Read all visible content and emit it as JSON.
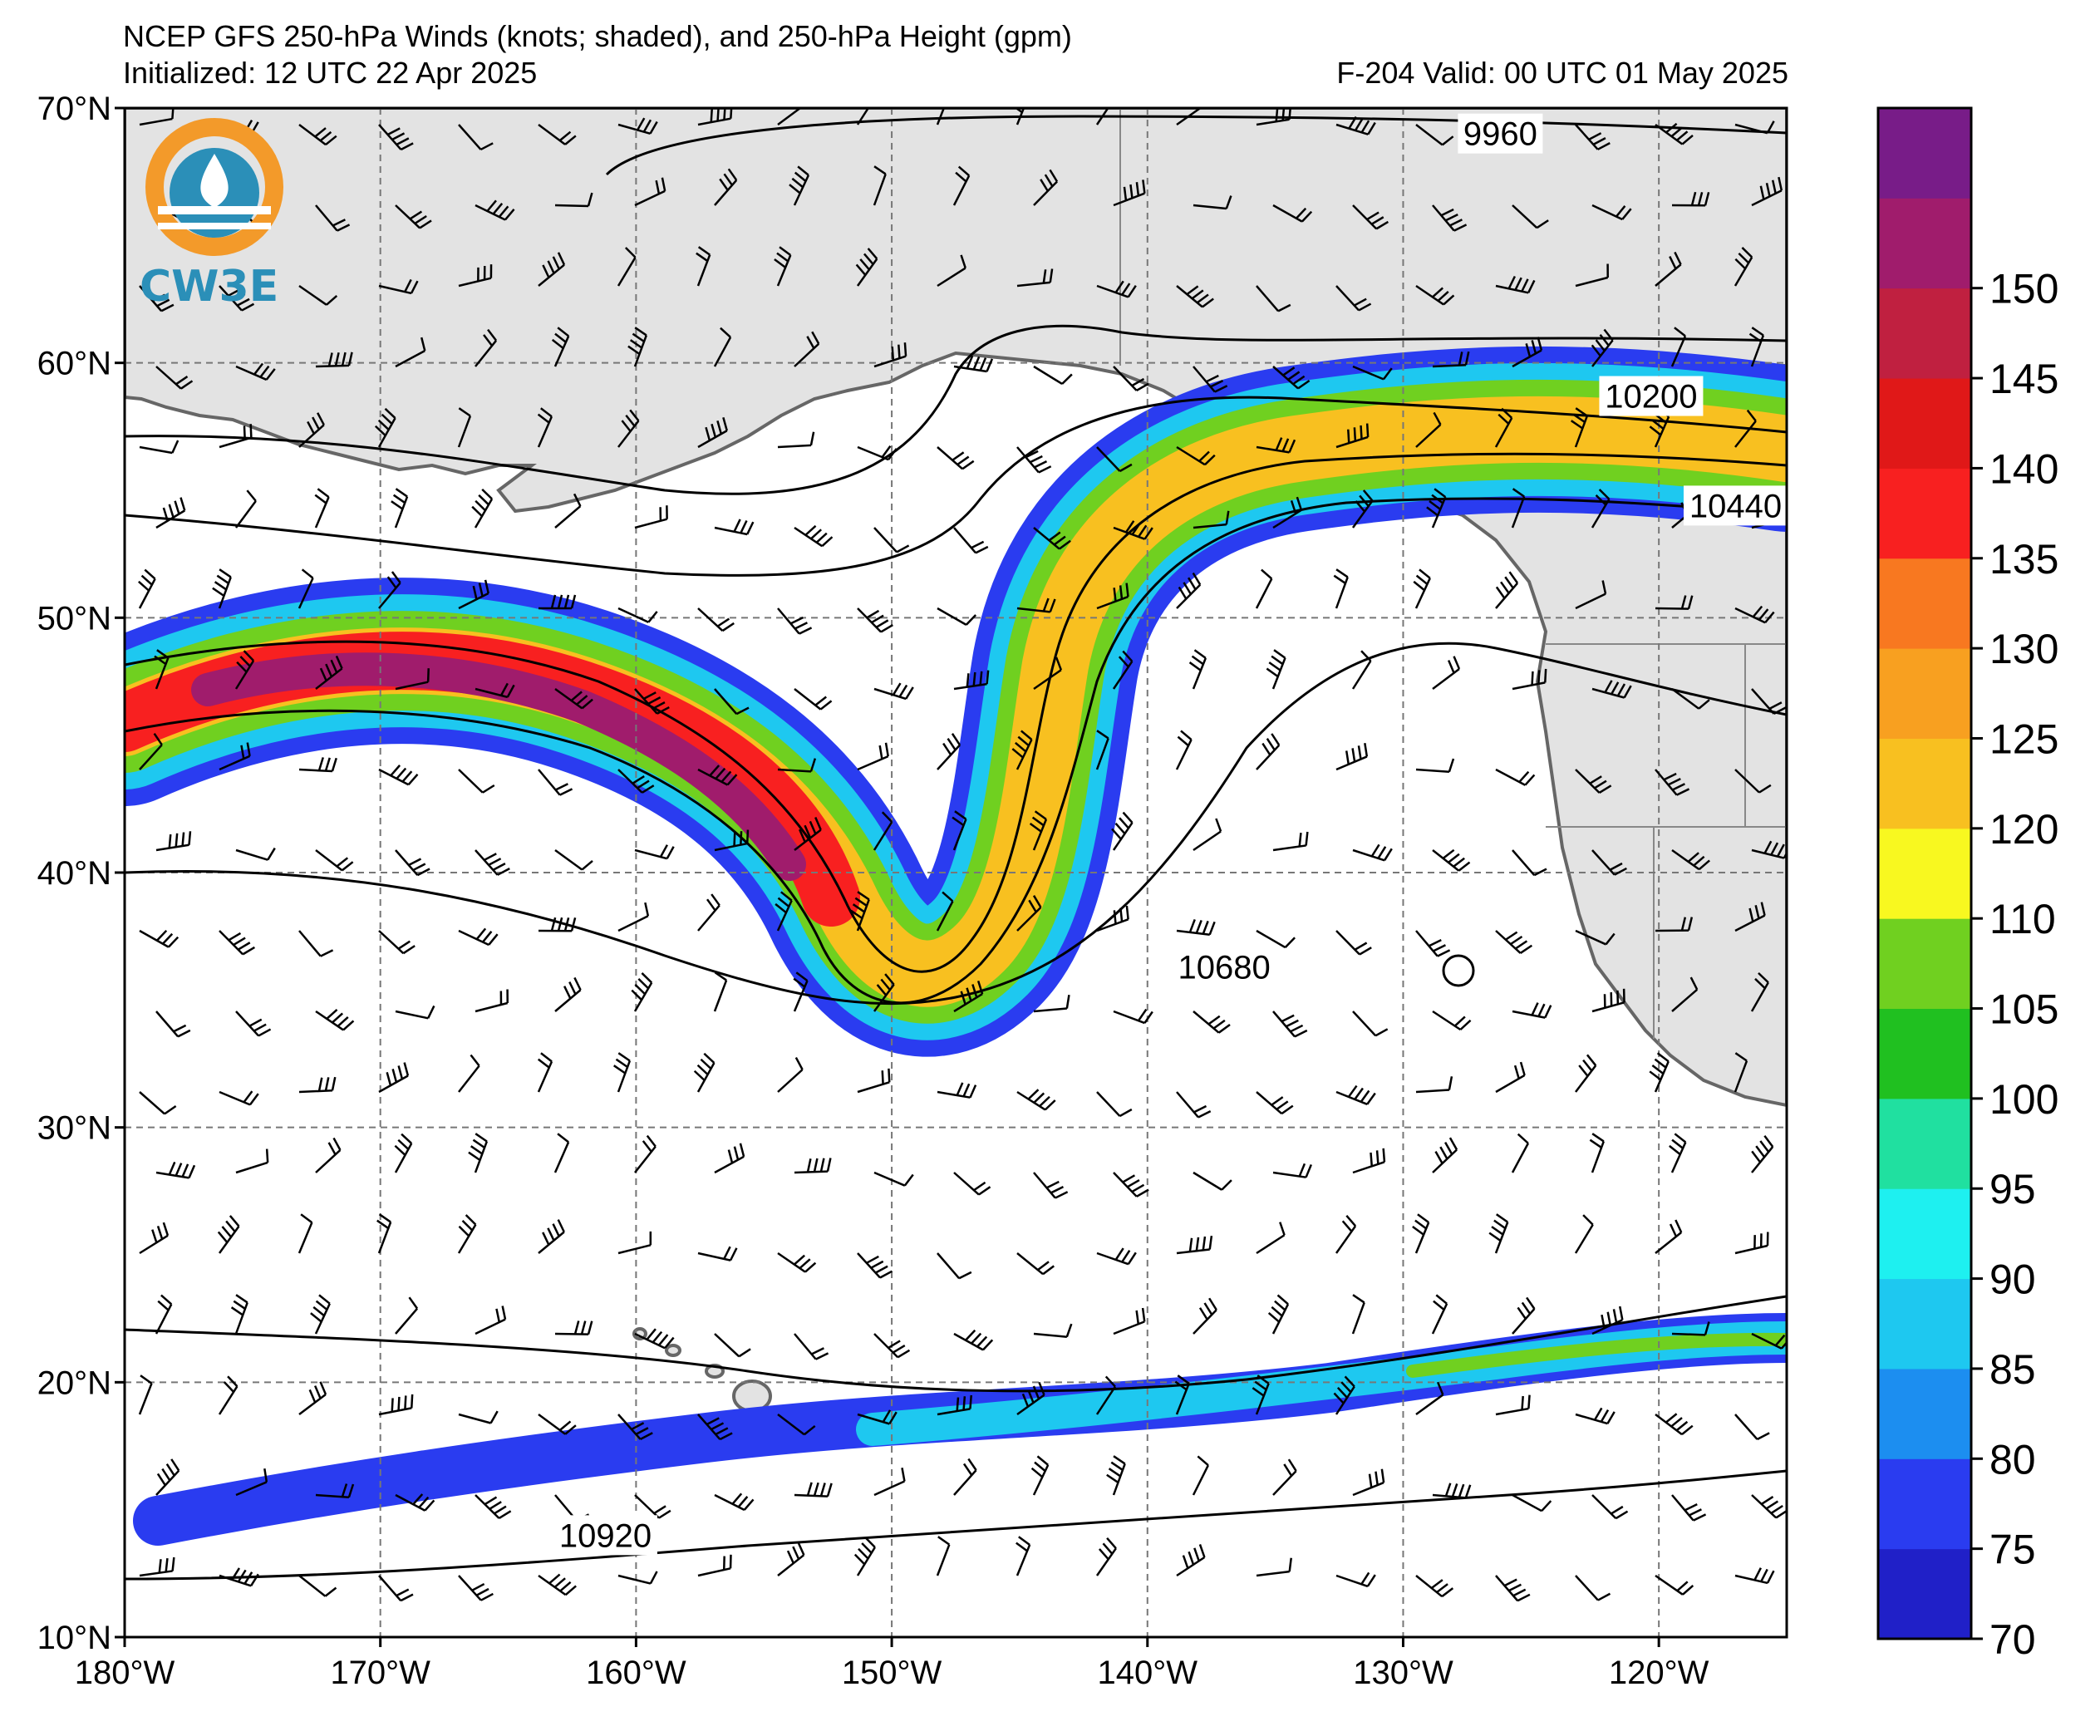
{
  "header": {
    "title": "NCEP GFS 250-hPa Winds (knots; shaded), and 250-hPa Height (gpm)",
    "initialized": "Initialized: 12 UTC 22 Apr 2025",
    "valid": "F-204  Valid: 00 UTC 01 May 2025"
  },
  "logo": {
    "text": "CW3E"
  },
  "map": {
    "lon_range": [
      -180,
      -115
    ],
    "lat_range": [
      10,
      70
    ],
    "lat_labels": [
      "70°N",
      "60°N",
      "50°N",
      "40°N",
      "30°N",
      "20°N",
      "10°N"
    ],
    "lat_values": [
      70,
      60,
      50,
      40,
      30,
      20,
      10
    ],
    "lon_labels": [
      "180°W",
      "170°W",
      "160°W",
      "150°W",
      "140°W",
      "130°W",
      "120°W"
    ],
    "lon_values": [
      -180,
      -170,
      -160,
      -150,
      -140,
      -130,
      -120
    ],
    "land_color": "#e3e3e3",
    "ocean_color": "#ffffff",
    "grid": true
  },
  "height_contours": {
    "labels": [
      {
        "text": "9960",
        "lon": -126.2,
        "lat": 69.0
      },
      {
        "text": "10200",
        "lon": -120.3,
        "lat": 58.7
      },
      {
        "text": "10440",
        "lon": -117.0,
        "lat": 54.4
      },
      {
        "text": "10680",
        "lon": -137.0,
        "lat": 36.3
      },
      {
        "text": "10920",
        "lon": -161.2,
        "lat": 14.0
      }
    ]
  },
  "colorbar": {
    "levels": [
      70,
      75,
      80,
      85,
      90,
      95,
      100,
      105,
      110,
      120,
      125,
      130,
      135,
      140,
      145,
      150
    ],
    "labels": [
      "70",
      "75",
      "80",
      "85",
      "90",
      "95",
      "100",
      "105",
      "110",
      "120",
      "125",
      "130",
      "135",
      "140",
      "145",
      "150"
    ],
    "colors": [
      "#2020c8",
      "#2a3cf0",
      "#1c8ef0",
      "#1ec8f0",
      "#1ef0f0",
      "#20e0a0",
      "#20c020",
      "#70d020",
      "#f8f820",
      "#f8c020",
      "#f8a020",
      "#f87820",
      "#f82020",
      "#e01818",
      "#c02040",
      "#a01c6c",
      "#781c88"
    ]
  }
}
